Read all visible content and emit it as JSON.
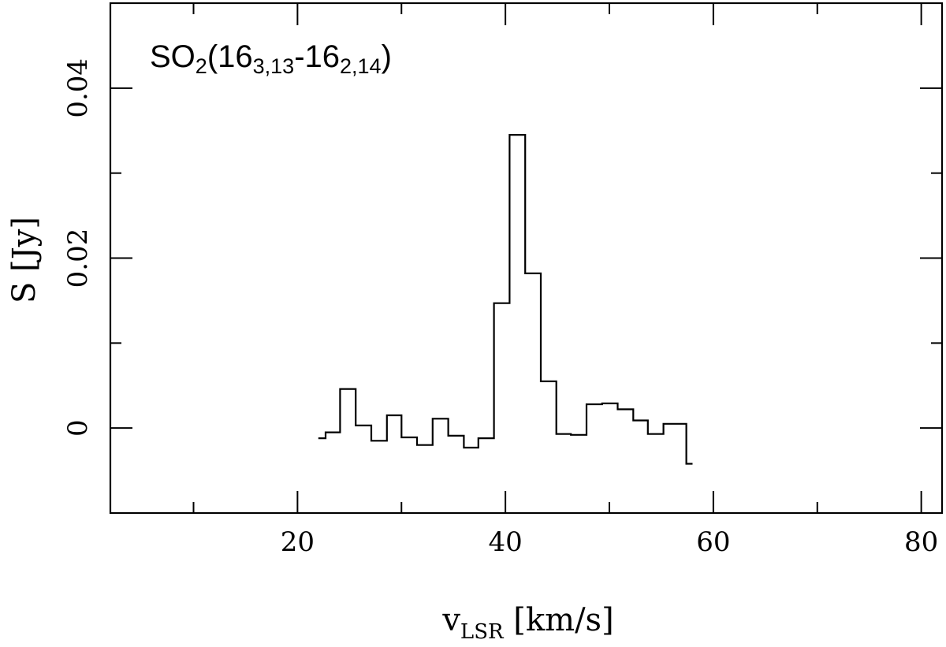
{
  "chart_data": {
    "type": "line",
    "style": "step",
    "annotation": {
      "main": "SO",
      "sub1": "2",
      "open": "(16",
      "sub2": "3,13",
      "mid": "-16",
      "sub3": "2,14",
      "close": ")"
    },
    "xlabel": {
      "main": "v",
      "sub": "LSR",
      "rest": " [km/s]"
    },
    "ylabel": "S [Jy]",
    "xlim": [
      2,
      82
    ],
    "ylim": [
      -0.01,
      0.05
    ],
    "x_ticks": [
      {
        "value": 20,
        "label": "20"
      },
      {
        "value": 40,
        "label": "40"
      },
      {
        "value": 60,
        "label": "60"
      },
      {
        "value": 80,
        "label": "80"
      }
    ],
    "x_minor_ticks": [
      10,
      30,
      50,
      70
    ],
    "y_ticks": [
      {
        "value": 0,
        "label": "0"
      },
      {
        "value": 0.02,
        "label": "0.02"
      },
      {
        "value": 0.04,
        "label": "0.04"
      }
    ],
    "y_minor_ticks": [
      0.01,
      0.03
    ],
    "grid": false,
    "series": [
      {
        "color": "#000000",
        "edges": [
          22.0,
          22.7,
          24.1,
          25.6,
          27.1,
          28.6,
          30.0,
          31.5,
          33.0,
          34.5,
          36.0,
          37.4,
          38.9,
          40.4,
          41.9,
          43.4,
          44.9,
          46.3,
          47.8,
          49.3,
          50.8,
          52.3,
          53.7,
          55.2,
          56.7,
          57.4,
          58.0
        ],
        "values": [
          -0.0012,
          -0.0005,
          0.0046,
          0.0003,
          -0.0015,
          0.0015,
          -0.0011,
          -0.002,
          0.0011,
          -0.0009,
          -0.0023,
          -0.0012,
          0.0147,
          0.0345,
          0.0182,
          0.0055,
          -0.0007,
          -0.0008,
          0.0028,
          0.0029,
          0.0022,
          0.0009,
          -0.0007,
          0.0005,
          0.0005,
          -0.0042
        ]
      }
    ]
  }
}
